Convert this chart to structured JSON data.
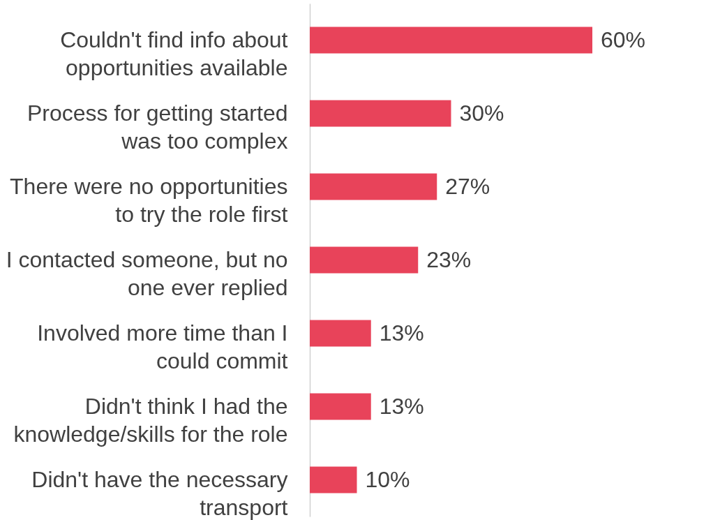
{
  "chart_data": {
    "type": "bar",
    "orientation": "horizontal",
    "categories": [
      "Couldn't find info about opportunities available",
      "Process for getting started was too complex",
      "There were no opportunities to try the role first",
      "I contacted someone, but no one ever replied",
      "Involved more time than I could commit",
      "Didn't think I had the knowledge/skills for the role",
      "Didn't have the necessary transport"
    ],
    "values": [
      60,
      30,
      27,
      23,
      13,
      13,
      10
    ],
    "value_labels": [
      "60%",
      "30%",
      "27%",
      "23%",
      "13%",
      "13%",
      "10%"
    ],
    "color": "#e8435a",
    "grid": false,
    "legend": false
  }
}
